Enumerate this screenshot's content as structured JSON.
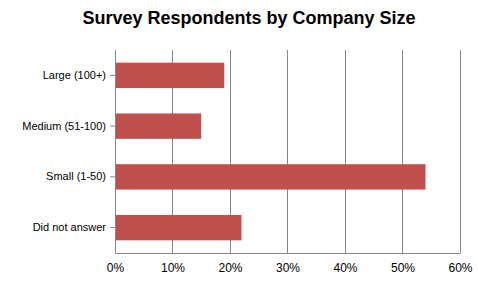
{
  "chart_data": {
    "type": "bar",
    "title": "Survey Respondents by Company Size",
    "orientation": "horizontal",
    "categories": [
      "Large (100+)",
      "Medium (51-100)",
      "Small (1-50)",
      "Did not answer"
    ],
    "values": [
      19,
      15,
      54,
      22
    ],
    "color": "#c0504d",
    "xlim": [
      0,
      60
    ],
    "xticks": [
      {
        "value": 0,
        "label": "0%"
      },
      {
        "value": 10,
        "label": "10%"
      },
      {
        "value": 20,
        "label": "20%"
      },
      {
        "value": 30,
        "label": "30%"
      },
      {
        "value": 40,
        "label": "40%"
      },
      {
        "value": 50,
        "label": "50%"
      },
      {
        "value": 60,
        "label": "60%"
      }
    ],
    "grid": true
  }
}
